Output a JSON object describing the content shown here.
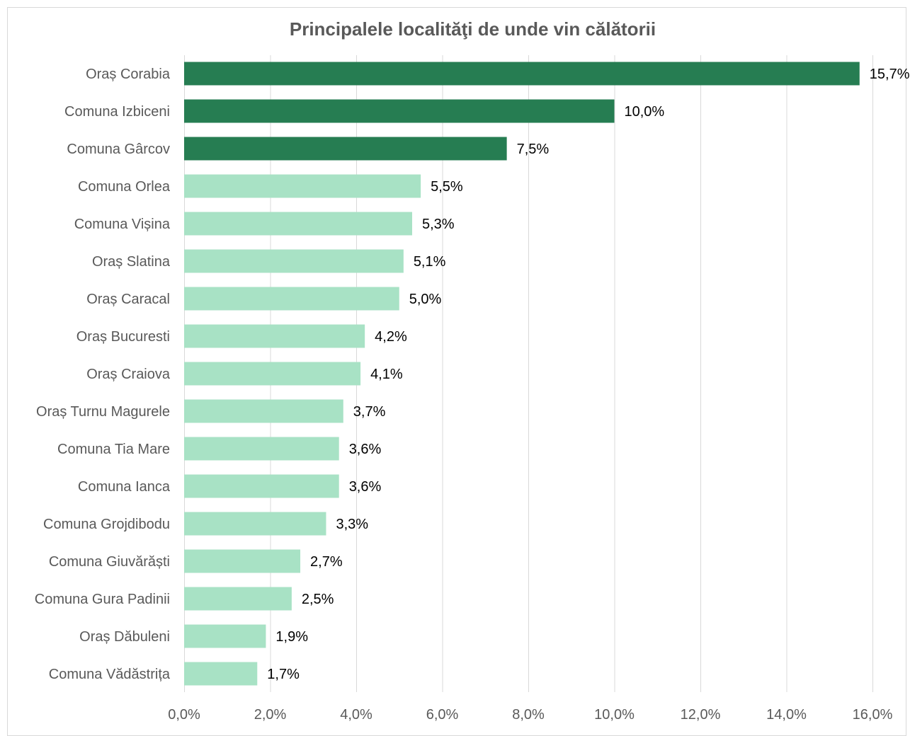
{
  "chart_data": {
    "type": "bar",
    "orientation": "horizontal",
    "title": "Principalele localităţi de unde vin călătorii",
    "categories": [
      "Oraș Corabia",
      "Comuna Izbiceni",
      "Comuna Gârcov",
      "Comuna Orlea",
      "Comuna Vișina",
      "Oraș Slatina",
      "Oraș Caracal",
      "Oraș Bucuresti",
      "Oraș Craiova",
      "Oraș Turnu Magurele",
      "Comuna Tia Mare",
      "Comuna Ianca",
      "Comuna Grojdibodu",
      "Comuna Giuvărăști",
      "Comuna Gura Padinii",
      "Oraș Dăbuleni",
      "Comuna Vădăstrița"
    ],
    "values": [
      15.7,
      10.0,
      7.5,
      5.5,
      5.3,
      5.1,
      5.0,
      4.2,
      4.1,
      3.7,
      3.6,
      3.6,
      3.3,
      2.7,
      2.5,
      1.9,
      1.7
    ],
    "value_labels": [
      "15,7%",
      "10,0%",
      "7,5%",
      "5,5%",
      "5,3%",
      "5,1%",
      "5,0%",
      "4,2%",
      "4,1%",
      "3,7%",
      "3,6%",
      "3,6%",
      "3,3%",
      "2,7%",
      "2,5%",
      "1,9%",
      "1,7%"
    ],
    "highlight_top_n": 3,
    "xlim": [
      0,
      16
    ],
    "xticks": [
      0,
      2,
      4,
      6,
      8,
      10,
      12,
      14,
      16
    ],
    "xtick_labels": [
      "0,0%",
      "2,0%",
      "4,0%",
      "6,0%",
      "8,0%",
      "10,0%",
      "12,0%",
      "14,0%",
      "16,0%"
    ],
    "grid": "vertical",
    "legend": "none",
    "colors": {
      "highlight": "#267d52",
      "normal": "#a8e2c5",
      "grid": "#d9d9d9",
      "text": "#595959"
    }
  }
}
